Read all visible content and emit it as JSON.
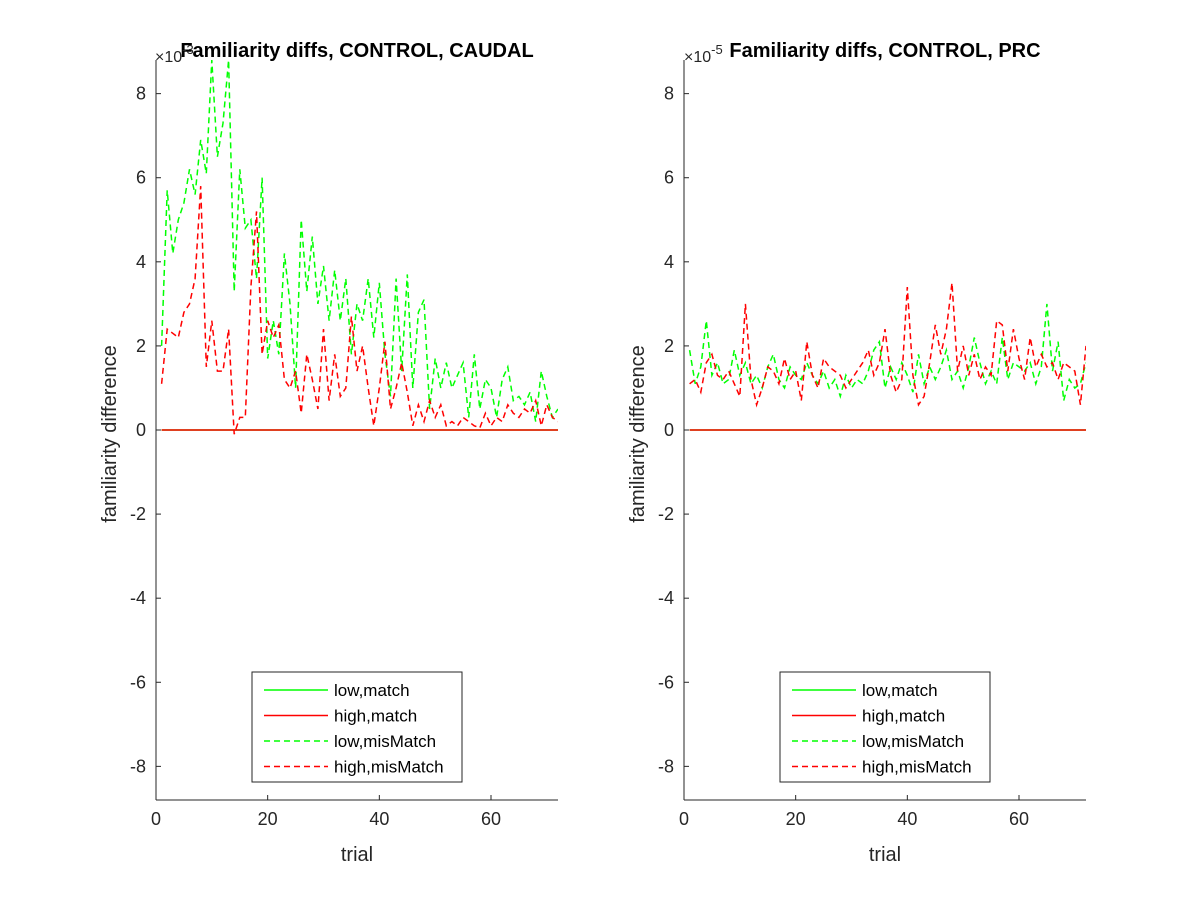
{
  "chart_data": [
    {
      "type": "line",
      "title": "Familiarity diffs, CONTROL, CAUDAL",
      "xlabel": "trial",
      "ylabel": "familiarity difference",
      "exponent_label": "×10",
      "exponent_power": "-3",
      "xlim": [
        0,
        72
      ],
      "ylim": [
        -8.8,
        8.8
      ],
      "xticks": [
        "0",
        "20",
        "40",
        "60"
      ],
      "xtick_values": [
        0,
        20,
        40,
        60
      ],
      "yticks": [
        "-8",
        "-6",
        "-4",
        "-2",
        "0",
        "2",
        "4",
        "6",
        "8"
      ],
      "ytick_values": [
        -8,
        -6,
        -4,
        -2,
        0,
        2,
        4,
        6,
        8
      ],
      "grid": false,
      "legend_position": "bottom",
      "series": [
        {
          "name": "low,match",
          "color": "#00ff00",
          "dash": "solid",
          "x": [
            1,
            72
          ],
          "y": [
            0,
            0
          ]
        },
        {
          "name": "high,match",
          "color": "#ff0000",
          "dash": "solid",
          "x": [
            1,
            72
          ],
          "y": [
            0,
            0
          ]
        },
        {
          "name": "low,misMatch",
          "color": "#00ff00",
          "dash": "dashed",
          "x": [
            1,
            2,
            3,
            4,
            5,
            6,
            7,
            8,
            9,
            10,
            11,
            12,
            13,
            14,
            15,
            16,
            17,
            18,
            19,
            20,
            21,
            22,
            23,
            24,
            25,
            26,
            27,
            28,
            29,
            30,
            31,
            32,
            33,
            34,
            35,
            36,
            37,
            38,
            39,
            40,
            41,
            42,
            43,
            44,
            45,
            46,
            47,
            48,
            49,
            50,
            51,
            52,
            53,
            54,
            55,
            56,
            57,
            58,
            59,
            60,
            61,
            62,
            63,
            64,
            65,
            66,
            67,
            68,
            69,
            70,
            71,
            72
          ],
          "y": [
            2.0,
            5.7,
            4.2,
            5.0,
            5.4,
            6.2,
            5.6,
            6.9,
            6.1,
            8.8,
            6.5,
            7.3,
            8.8,
            3.3,
            6.2,
            4.8,
            5.0,
            3.6,
            6.0,
            1.7,
            2.6,
            1.8,
            4.2,
            3.0,
            1.0,
            5.0,
            3.3,
            4.6,
            3.0,
            3.9,
            2.6,
            3.8,
            2.6,
            3.6,
            1.8,
            3.0,
            2.6,
            3.6,
            2.2,
            3.5,
            1.8,
            0.8,
            3.6,
            1.4,
            3.7,
            1.0,
            2.8,
            3.1,
            0.5,
            1.7,
            1.0,
            1.6,
            1.0,
            1.3,
            1.6,
            0.3,
            1.8,
            0.5,
            1.2,
            1.0,
            0.3,
            1.2,
            1.5,
            0.7,
            0.8,
            0.6,
            0.9,
            0.2,
            1.4,
            0.8,
            0.3,
            0.5
          ]
        },
        {
          "name": "high,misMatch",
          "color": "#ff0000",
          "dash": "dashed",
          "x": [
            1,
            2,
            3,
            4,
            5,
            6,
            7,
            8,
            9,
            10,
            11,
            12,
            13,
            14,
            15,
            16,
            17,
            18,
            19,
            20,
            21,
            22,
            23,
            24,
            25,
            26,
            27,
            28,
            29,
            30,
            31,
            32,
            33,
            34,
            35,
            36,
            37,
            38,
            39,
            40,
            41,
            42,
            43,
            44,
            45,
            46,
            47,
            48,
            49,
            50,
            51,
            52,
            53,
            54,
            55,
            56,
            57,
            58,
            59,
            60,
            61,
            62,
            63,
            64,
            65,
            66,
            67,
            68,
            69,
            70,
            71,
            72
          ],
          "y": [
            1.1,
            2.4,
            2.3,
            2.2,
            2.8,
            3.0,
            3.6,
            5.8,
            1.5,
            2.6,
            1.4,
            1.4,
            2.4,
            -0.1,
            0.3,
            0.3,
            3.4,
            5.2,
            1.8,
            2.6,
            2.2,
            2.5,
            1.2,
            1.0,
            1.4,
            0.4,
            1.8,
            1.2,
            0.5,
            2.4,
            0.7,
            1.8,
            0.8,
            1.0,
            2.7,
            1.4,
            2.0,
            1.0,
            0.1,
            1.0,
            2.1,
            0.5,
            1.0,
            1.6,
            0.9,
            0.1,
            0.6,
            0.2,
            0.7,
            0.3,
            0.6,
            0.1,
            0.2,
            0.1,
            0.3,
            0.2,
            0.1,
            0.05,
            0.4,
            0.1,
            0.3,
            0.2,
            0.6,
            0.4,
            0.3,
            0.5,
            0.4,
            0.7,
            0.1,
            0.6,
            0.3,
            0.2
          ]
        }
      ]
    },
    {
      "type": "line",
      "title": "Familiarity diffs, CONTROL, PRC",
      "xlabel": "trial",
      "ylabel": "familiarity difference",
      "exponent_label": "×10",
      "exponent_power": "-5",
      "xlim": [
        0,
        72
      ],
      "ylim": [
        -8.8,
        8.8
      ],
      "xticks": [
        "0",
        "20",
        "40",
        "60"
      ],
      "xtick_values": [
        0,
        20,
        40,
        60
      ],
      "yticks": [
        "-8",
        "-6",
        "-4",
        "-2",
        "0",
        "2",
        "4",
        "6",
        "8"
      ],
      "ytick_values": [
        -8,
        -6,
        -4,
        -2,
        0,
        2,
        4,
        6,
        8
      ],
      "grid": false,
      "legend_position": "bottom",
      "series": [
        {
          "name": "low,match",
          "color": "#00ff00",
          "dash": "solid",
          "x": [
            1,
            72
          ],
          "y": [
            0,
            0
          ]
        },
        {
          "name": "high,match",
          "color": "#ff0000",
          "dash": "solid",
          "x": [
            1,
            72
          ],
          "y": [
            0,
            0
          ]
        },
        {
          "name": "low,misMatch",
          "color": "#00ff00",
          "dash": "dashed",
          "x": [
            1,
            2,
            3,
            4,
            5,
            6,
            7,
            8,
            9,
            10,
            11,
            12,
            13,
            14,
            15,
            16,
            17,
            18,
            19,
            20,
            21,
            22,
            23,
            24,
            25,
            26,
            27,
            28,
            29,
            30,
            31,
            32,
            33,
            34,
            35,
            36,
            37,
            38,
            39,
            40,
            41,
            42,
            43,
            44,
            45,
            46,
            47,
            48,
            49,
            50,
            51,
            52,
            53,
            54,
            55,
            56,
            57,
            58,
            59,
            60,
            61,
            62,
            63,
            64,
            65,
            66,
            67,
            68,
            69,
            70,
            71,
            72
          ],
          "y": [
            1.9,
            1.1,
            1.5,
            2.6,
            1.3,
            1.6,
            1.1,
            1.2,
            1.9,
            1.3,
            1.6,
            1.1,
            1.3,
            1.0,
            1.5,
            1.8,
            1.2,
            1.0,
            1.5,
            1.3,
            1.2,
            1.6,
            1.3,
            1.1,
            1.4,
            1.0,
            1.2,
            0.8,
            1.3,
            1.0,
            1.2,
            1.1,
            1.4,
            1.9,
            2.1,
            1.0,
            1.5,
            1.2,
            1.6,
            1.3,
            0.9,
            1.8,
            1.1,
            1.5,
            1.2,
            1.5,
            1.9,
            1.2,
            1.4,
            1.0,
            1.5,
            2.2,
            1.6,
            1.1,
            1.4,
            1.1,
            2.2,
            1.2,
            1.6,
            1.5,
            1.4,
            1.6,
            1.1,
            1.5,
            3.0,
            1.4,
            2.1,
            0.7,
            1.2,
            1.0,
            1.1,
            1.6
          ]
        },
        {
          "name": "high,misMatch",
          "color": "#ff0000",
          "dash": "dashed",
          "x": [
            1,
            2,
            3,
            4,
            5,
            6,
            7,
            8,
            9,
            10,
            11,
            12,
            13,
            14,
            15,
            16,
            17,
            18,
            19,
            20,
            21,
            22,
            23,
            24,
            25,
            26,
            27,
            28,
            29,
            30,
            31,
            32,
            33,
            34,
            35,
            36,
            37,
            38,
            39,
            40,
            41,
            42,
            43,
            44,
            45,
            46,
            47,
            48,
            49,
            50,
            51,
            52,
            53,
            54,
            55,
            56,
            57,
            58,
            59,
            60,
            61,
            62,
            63,
            64,
            65,
            66,
            67,
            68,
            69,
            70,
            71,
            72
          ],
          "y": [
            1.1,
            1.2,
            0.9,
            1.6,
            1.8,
            1.3,
            1.2,
            1.4,
            1.1,
            0.8,
            3.0,
            1.2,
            0.6,
            1.0,
            1.5,
            1.4,
            1.1,
            1.7,
            1.2,
            1.4,
            0.7,
            2.1,
            1.3,
            1.0,
            1.7,
            1.5,
            1.4,
            1.3,
            1.0,
            1.2,
            1.4,
            1.6,
            1.9,
            1.3,
            1.6,
            2.4,
            1.3,
            0.9,
            1.2,
            3.4,
            1.3,
            0.6,
            0.8,
            1.6,
            2.5,
            1.8,
            2.4,
            3.5,
            1.4,
            2.0,
            1.3,
            1.8,
            1.2,
            1.5,
            1.3,
            2.6,
            2.5,
            1.4,
            2.4,
            1.7,
            1.2,
            2.2,
            1.5,
            1.8,
            1.5,
            1.6,
            1.2,
            1.6,
            1.5,
            1.4,
            0.6,
            2.0
          ]
        }
      ]
    }
  ]
}
